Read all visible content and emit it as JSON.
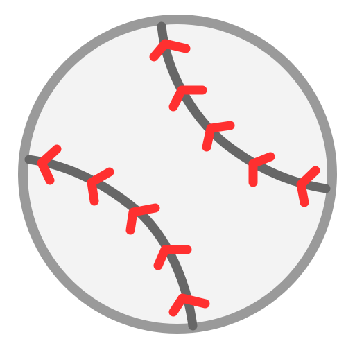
{
  "icon": {
    "name": "baseball-icon",
    "colors": {
      "ball_fill": "#f3f3f3",
      "ball_outline": "#9a9a9a",
      "seam": "#676767",
      "stitches": "#ff3030"
    }
  }
}
